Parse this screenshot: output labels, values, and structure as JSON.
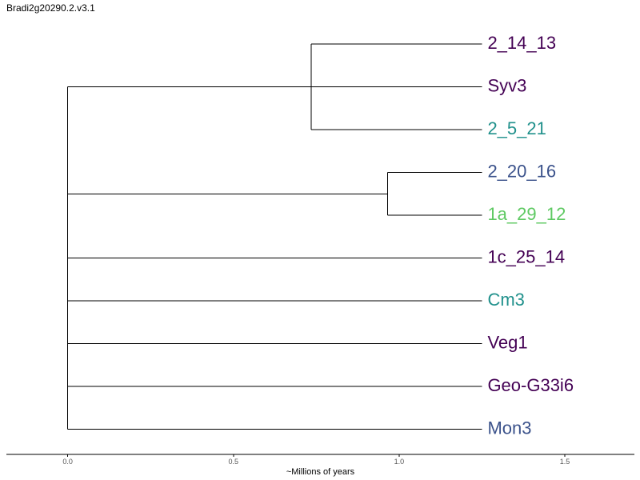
{
  "title": "Bradi2g20290.2.v3.1",
  "axis": {
    "label": "~Millions of years",
    "ticks": [
      0.0,
      0.5,
      1.0,
      1.5
    ],
    "tick_labels": [
      "0.0",
      "0.5",
      "1.0",
      "1.5"
    ],
    "range": [
      -0.185,
      1.71
    ]
  },
  "colors": {
    "dark_purple": "#440154",
    "teal": "#21918c",
    "blue": "#3b528b",
    "green": "#5ec962",
    "branch": "#000000"
  },
  "tree": {
    "tip_depth": 1.25,
    "tips": [
      {
        "name": "2_14_13",
        "color": "#440154"
      },
      {
        "name": "Syv3",
        "color": "#440154"
      },
      {
        "name": "2_5_21",
        "color": "#21918c"
      },
      {
        "name": "2_20_16",
        "color": "#3b528b"
      },
      {
        "name": "1a_29_12",
        "color": "#5ec962"
      },
      {
        "name": "1c_25_14",
        "color": "#440154"
      },
      {
        "name": "Cm3",
        "color": "#21918c"
      },
      {
        "name": "Veg1",
        "color": "#440154"
      },
      {
        "name": "Geo-G33i6",
        "color": "#440154"
      },
      {
        "name": "Mon3",
        "color": "#3b528b"
      }
    ],
    "clades": [
      {
        "members": [
          "2_14_13",
          "Syv3",
          "2_5_21"
        ],
        "node_depth": 0.735
      },
      {
        "members": [
          "2_20_16",
          "1a_29_12"
        ],
        "node_depth": 0.965
      }
    ],
    "root_depth": 0.0
  }
}
